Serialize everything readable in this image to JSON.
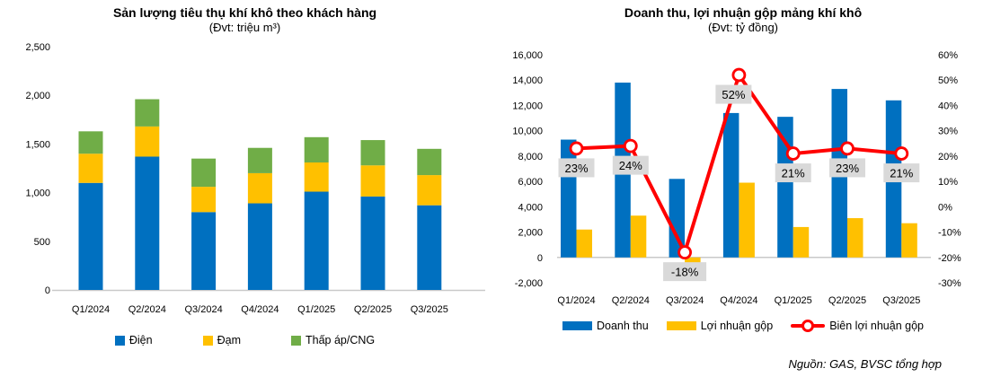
{
  "source_note": "Nguồn: GAS, BVSC tổng hợp",
  "colors": {
    "blue": "#0070C0",
    "yellow": "#FFC000",
    "green": "#70AD47",
    "red": "#FF0000",
    "label_bg": "#D9D9D9",
    "axis_line": "#C9C9C9",
    "text": "#000000"
  },
  "chart_data": [
    {
      "type": "bar",
      "stacked": true,
      "title": "Sản lượng tiêu thụ khí khô theo khách hàng",
      "subtitle": "(Đvt: triệu m³)",
      "categories": [
        "Q1/2024",
        "Q2/2024",
        "Q3/2024",
        "Q4/2024",
        "Q1/2025",
        "Q2/2025",
        "Q3/2025"
      ],
      "series": [
        {
          "name": "Điện",
          "color": "#0070C0",
          "values": [
            1100,
            1370,
            800,
            890,
            1010,
            960,
            870
          ]
        },
        {
          "name": "Đạm",
          "color": "#FFC000",
          "values": [
            300,
            310,
            260,
            310,
            300,
            320,
            310
          ]
        },
        {
          "name": "Thấp áp/CNG",
          "color": "#70AD47",
          "values": [
            230,
            280,
            290,
            260,
            260,
            260,
            270
          ]
        }
      ],
      "ylim": [
        0,
        2500
      ],
      "ytick_step": 500,
      "yticks": [
        "0",
        "500",
        "1,000",
        "1,500",
        "2,000",
        "2,500"
      ],
      "grid": false,
      "legend_position": "bottom"
    },
    {
      "type": "bar",
      "subtype": "combo-bar-line",
      "title": "Doanh thu, lợi nhuận gộp mảng khí khô",
      "subtitle": "(Đvt: tỷ đồng)",
      "categories": [
        "Q1/2024",
        "Q2/2024",
        "Q3/2024",
        "Q4/2024",
        "Q1/2025",
        "Q2/2025",
        "Q3/2025"
      ],
      "series": [
        {
          "name": "Doanh thu",
          "axis": "left",
          "color": "#0070C0",
          "values": [
            9300,
            13800,
            6200,
            11400,
            11100,
            13300,
            12400
          ]
        },
        {
          "name": "Lợi nhuận gộp",
          "axis": "left",
          "color": "#FFC000",
          "values": [
            2200,
            3300,
            -1100,
            5900,
            2400,
            3100,
            2700
          ]
        }
      ],
      "line_series": {
        "name": "Biên lợi nhuận gộp",
        "axis": "right",
        "color": "#FF0000",
        "values": [
          23,
          24,
          -18,
          52,
          21,
          23,
          21
        ],
        "labels": [
          "23%",
          "24%",
          "-18%",
          "52%",
          "21%",
          "23%",
          "21%"
        ]
      },
      "left_ylim": [
        -2000,
        16000
      ],
      "left_yticks": [
        "-2,000",
        "0",
        "2,000",
        "4,000",
        "6,000",
        "8,000",
        "10,000",
        "12,000",
        "14,000",
        "16,000"
      ],
      "right_ylim": [
        -30,
        60
      ],
      "right_yticks": [
        "-30%",
        "-20%",
        "-10%",
        "0%",
        "10%",
        "20%",
        "30%",
        "40%",
        "50%",
        "60%"
      ],
      "grid": false,
      "legend_position": "bottom"
    }
  ]
}
